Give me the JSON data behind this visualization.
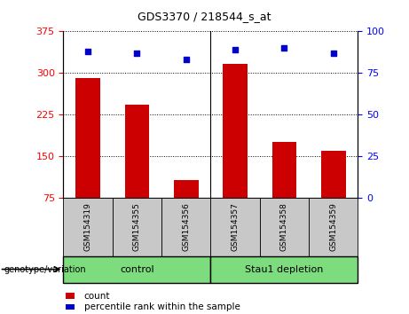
{
  "title": "GDS3370 / 218544_s_at",
  "samples": [
    "GSM154319",
    "GSM154355",
    "GSM154356",
    "GSM154357",
    "GSM154358",
    "GSM154359"
  ],
  "counts": [
    291,
    243,
    107,
    316,
    176,
    160
  ],
  "percentile_ranks": [
    88,
    87,
    83,
    89,
    90,
    87
  ],
  "ylim_left": [
    75,
    375
  ],
  "ylim_right": [
    0,
    100
  ],
  "yticks_left": [
    75,
    150,
    225,
    300,
    375
  ],
  "yticks_right": [
    0,
    25,
    50,
    75,
    100
  ],
  "bar_color": "#cc0000",
  "dot_color": "#0000cc",
  "bar_width": 0.5,
  "group_boundaries": [
    [
      0,
      2,
      "control"
    ],
    [
      3,
      5,
      "Stau1 depletion"
    ]
  ],
  "group_color": "#7ddc7d",
  "group_label_prefix": "genotype/variation",
  "legend_count_label": "count",
  "legend_percentile_label": "percentile rank within the sample",
  "left_tick_color": "red",
  "right_tick_color": "blue",
  "grid_style": "dotted",
  "grid_color": "black",
  "background_xtick": "#c8c8c8",
  "title_fontsize": 9,
  "tick_fontsize": 8,
  "sample_fontsize": 6.5,
  "group_fontsize": 8,
  "legend_fontsize": 7.5
}
